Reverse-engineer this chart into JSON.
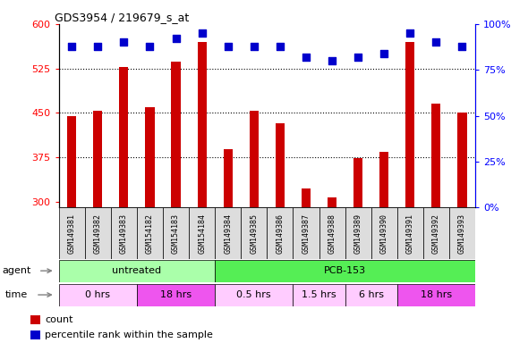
{
  "title": "GDS3954 / 219679_s_at",
  "samples": [
    "GSM149381",
    "GSM149382",
    "GSM149383",
    "GSM154182",
    "GSM154183",
    "GSM154184",
    "GSM149384",
    "GSM149385",
    "GSM149386",
    "GSM149387",
    "GSM149388",
    "GSM149389",
    "GSM149390",
    "GSM149391",
    "GSM149392",
    "GSM149393"
  ],
  "counts": [
    444,
    453,
    527,
    459,
    537,
    570,
    389,
    453,
    432,
    322,
    307,
    374,
    384,
    570,
    466,
    451
  ],
  "percentile_ranks": [
    88,
    88,
    90,
    88,
    92,
    95,
    88,
    88,
    88,
    82,
    80,
    82,
    84,
    95,
    90,
    88
  ],
  "ylim_left": [
    290,
    600
  ],
  "ylim_right": [
    0,
    100
  ],
  "yticks_left": [
    300,
    375,
    450,
    525,
    600
  ],
  "yticks_right": [
    0,
    25,
    50,
    75,
    100
  ],
  "bar_color": "#cc0000",
  "dot_color": "#0000cc",
  "agent_groups": [
    {
      "label": "untreated",
      "start": 0,
      "end": 6,
      "color": "#aaffaa"
    },
    {
      "label": "PCB-153",
      "start": 6,
      "end": 16,
      "color": "#55ee55"
    }
  ],
  "time_groups": [
    {
      "label": "0 hrs",
      "start": 0,
      "end": 3,
      "color": "#ffccff"
    },
    {
      "label": "18 hrs",
      "start": 3,
      "end": 6,
      "color": "#ee55ee"
    },
    {
      "label": "0.5 hrs",
      "start": 6,
      "end": 9,
      "color": "#ffccff"
    },
    {
      "label": "1.5 hrs",
      "start": 9,
      "end": 11,
      "color": "#ffccff"
    },
    {
      "label": "6 hrs",
      "start": 11,
      "end": 13,
      "color": "#ffccff"
    },
    {
      "label": "18 hrs",
      "start": 13,
      "end": 16,
      "color": "#ee55ee"
    }
  ],
  "legend_items": [
    {
      "label": "count",
      "color": "#cc0000",
      "marker": "s"
    },
    {
      "label": "percentile rank within the sample",
      "color": "#0000cc",
      "marker": "s"
    }
  ],
  "bar_width": 0.35,
  "dot_size": 28
}
